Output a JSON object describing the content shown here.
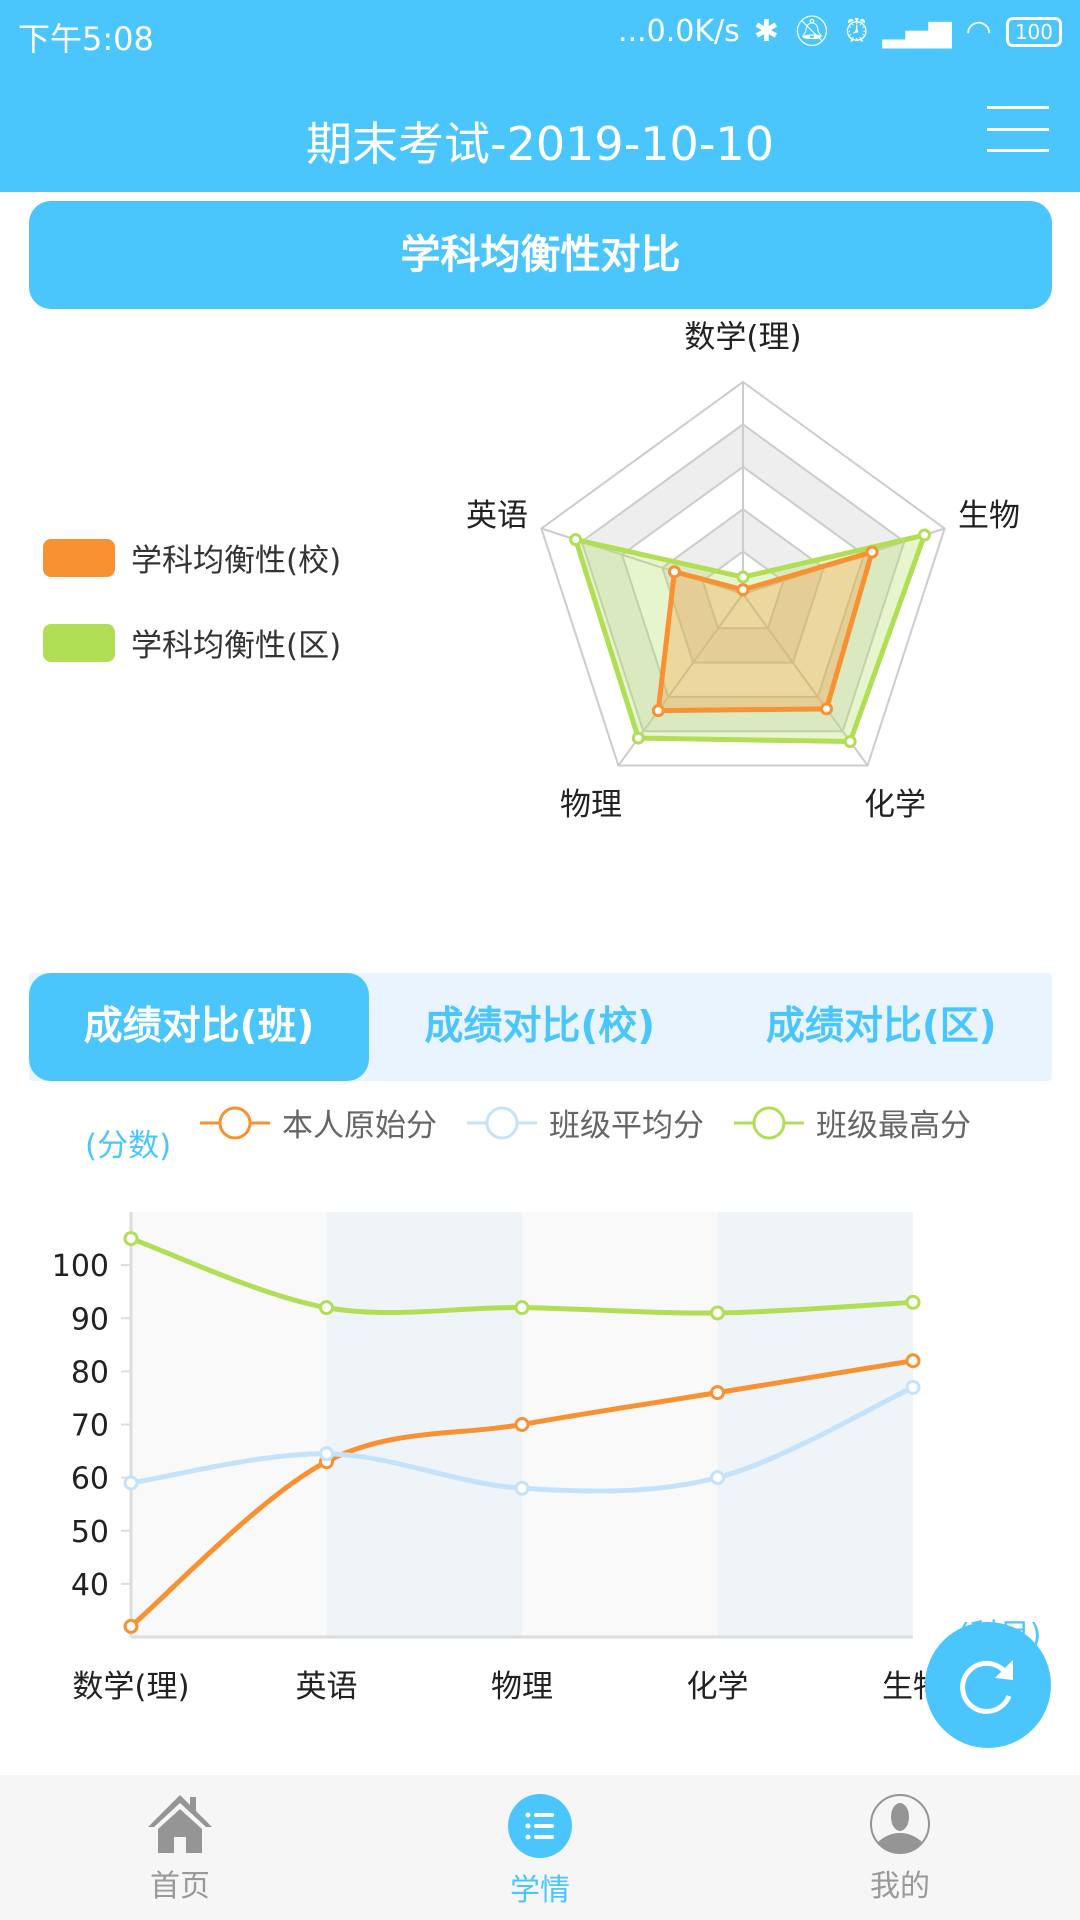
{
  "status_bar": {
    "time": "下午5:08",
    "net_speed": "...0.0K/s",
    "battery": "100"
  },
  "header": {
    "title": "期末考试-2019-10-10"
  },
  "radar_section": {
    "title": "学科均衡性对比"
  },
  "chart_data": [
    {
      "type": "radar",
      "indicators": [
        "数学(理)",
        "生物",
        "化学",
        "物理",
        "英语"
      ],
      "legend_placement": "left",
      "series": [
        {
          "name": "学科均衡性(校)",
          "color": "#f79132",
          "values": [
            0.02,
            0.64,
            0.67,
            0.68,
            0.34
          ]
        },
        {
          "name": "学科均衡性(区)",
          "color": "#b0de55",
          "values": [
            0.08,
            0.9,
            0.86,
            0.84,
            0.83
          ]
        }
      ]
    },
    {
      "type": "line",
      "smooth": true,
      "categories": [
        "数学(理)",
        "英语",
        "物理",
        "化学",
        "生物"
      ],
      "ylabel": "(分数)",
      "xlabel": "(科目)",
      "ylim": [
        30,
        110
      ],
      "yticks": [
        40,
        50,
        60,
        70,
        80,
        90,
        100
      ],
      "legend_placement": "top",
      "series": [
        {
          "name": "本人原始分",
          "color": "#f79132",
          "values": [
            32,
            63,
            70,
            76,
            82
          ]
        },
        {
          "name": "班级平均分",
          "color": "#c5e2fb",
          "values": [
            59,
            64.5,
            58,
            60,
            77
          ]
        },
        {
          "name": "班级最高分",
          "color": "#b0de55",
          "values": [
            105,
            92,
            92,
            91,
            93
          ]
        }
      ]
    }
  ],
  "tabs": [
    {
      "label": "成绩对比(班)",
      "active": true
    },
    {
      "label": "成绩对比(校)"
    },
    {
      "label": "成绩对比(区)"
    }
  ],
  "fab": {
    "icon": "refresh-icon"
  },
  "nav": [
    {
      "label": "首页",
      "icon": "home-icon"
    },
    {
      "label": "学情",
      "icon": "list-icon",
      "active": true
    },
    {
      "label": "我的",
      "icon": "user-icon"
    }
  ],
  "colors": {
    "accent": "#4bc6fd"
  }
}
